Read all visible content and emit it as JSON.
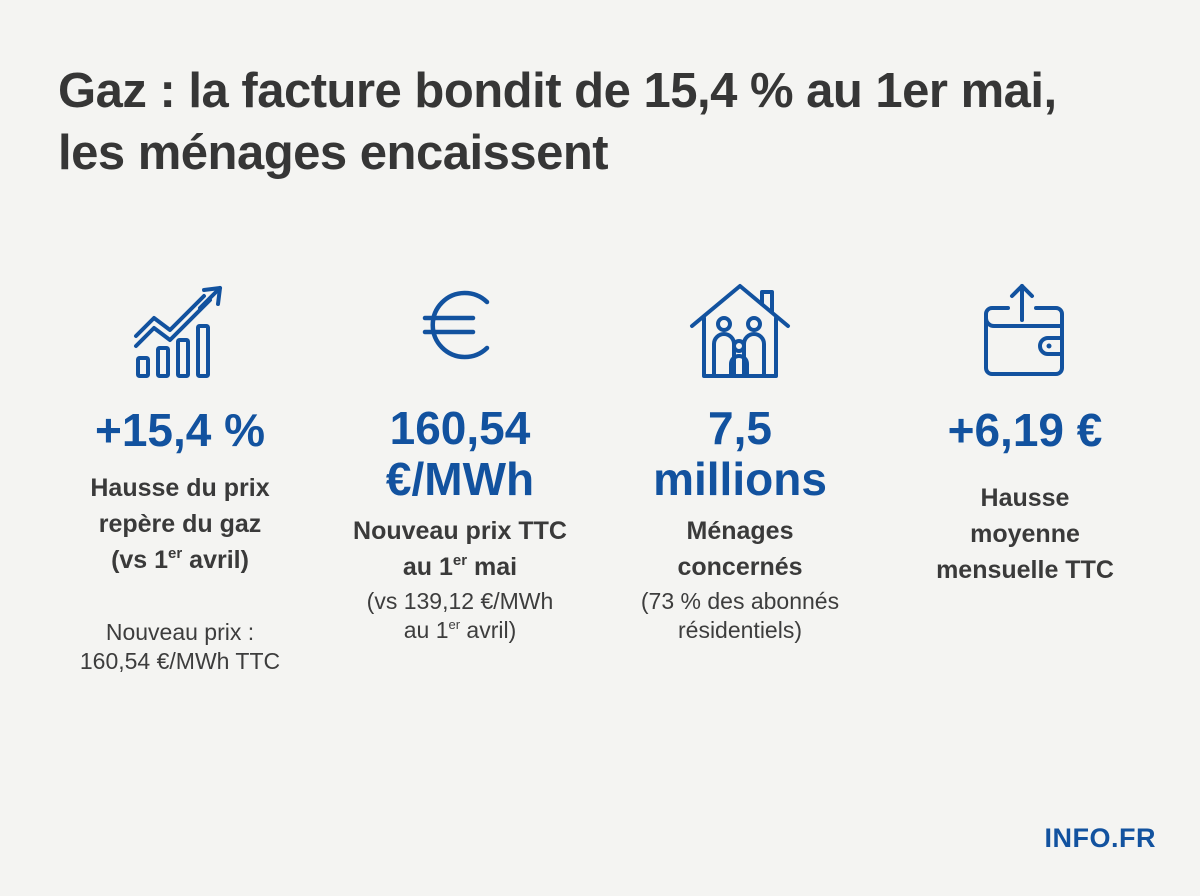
{
  "title": {
    "line1": "Gaz : la facture bondit de 15,4 % au 1er mai,",
    "line2": "les ménages encaissent"
  },
  "colors": {
    "accent": "#12529f",
    "text": "#363636",
    "background": "#f4f4f2"
  },
  "stats": [
    {
      "icon": "growth-chart-icon",
      "value": "+15,4 %",
      "label_line1": "Hausse du prix",
      "label_line2": "repère du gaz",
      "label_line3_pre": "(vs 1",
      "label_line3_sup": "er",
      "label_line3_post": " avril)",
      "note_line1": "Nouveau prix :",
      "note_line2": "160,54 €/MWh TTC"
    },
    {
      "icon": "euro-icon",
      "value_line1": "160,54",
      "value_line2": "€/MWh",
      "label_line1": "Nouveau prix TTC",
      "label_line2_pre": "au 1",
      "label_line2_sup": "er",
      "label_line2_post": " mai",
      "note_line1": "(vs 139,12 €/MWh",
      "note_line2_pre": "au 1",
      "note_line2_sup": "er",
      "note_line2_post": " avril)"
    },
    {
      "icon": "family-house-icon",
      "value_line1": "7,5",
      "value_line2": "millions",
      "label_line1": "Ménages",
      "label_line2": "concernés",
      "note_line1": "(73 % des abonnés",
      "note_line2": "résidentiels)"
    },
    {
      "icon": "wallet-icon",
      "value": "+6,19 €",
      "label_line1": "Hausse",
      "label_line2": "moyenne",
      "label_line3": "mensuelle TTC"
    }
  ],
  "brand": "INFO.FR"
}
